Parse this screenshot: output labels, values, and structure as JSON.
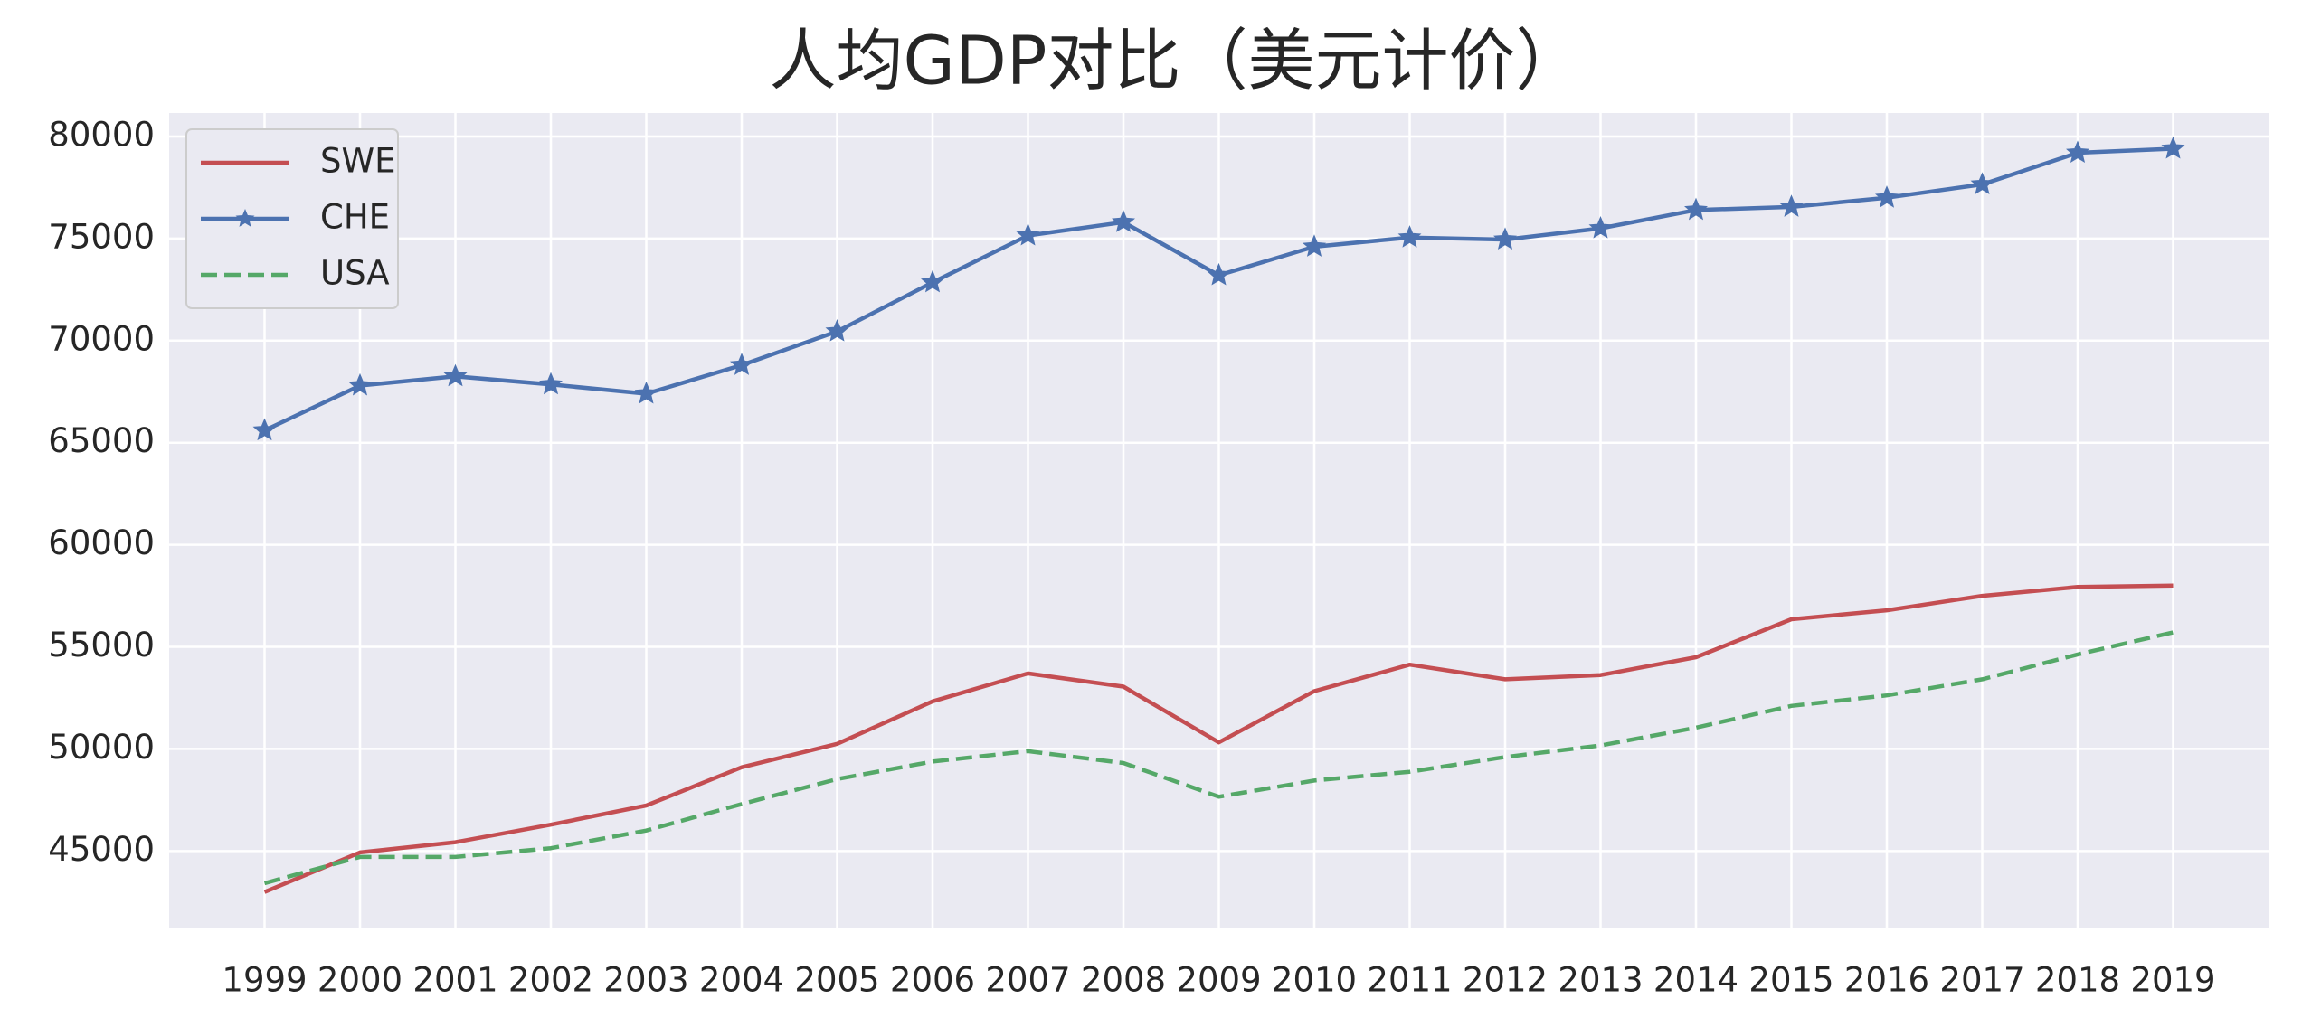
{
  "chart_data": {
    "type": "line",
    "title": "人均GDP对比（美元计价）",
    "categories": [
      "1999",
      "2000",
      "2001",
      "2002",
      "2003",
      "2004",
      "2005",
      "2006",
      "2007",
      "2008",
      "2009",
      "2010",
      "2011",
      "2012",
      "2013",
      "2014",
      "2015",
      "2016",
      "2017",
      "2018",
      "2019"
    ],
    "series": [
      {
        "name": "SWE",
        "color": "#c44e52",
        "linestyle": "solid",
        "marker": "none",
        "values": [
          42990,
          44930,
          45430,
          46290,
          47230,
          49100,
          50250,
          52330,
          53700,
          53050,
          50320,
          52830,
          54130,
          53410,
          53620,
          54490,
          56350,
          56790,
          57500,
          57930,
          58000
        ]
      },
      {
        "name": "CHE",
        "color": "#4c72b0",
        "linestyle": "solid",
        "marker": "star",
        "values": [
          65600,
          67800,
          68250,
          67850,
          67400,
          68800,
          70450,
          72850,
          75150,
          75800,
          73200,
          74600,
          75050,
          74950,
          75500,
          76400,
          76550,
          77000,
          77650,
          79200,
          79400
        ]
      },
      {
        "name": "USA",
        "color": "#55a868",
        "linestyle": "dashed",
        "marker": "none",
        "values": [
          43420,
          44710,
          44710,
          45140,
          46000,
          47300,
          48520,
          49380,
          49890,
          49310,
          47660,
          48450,
          48880,
          49600,
          50170,
          51040,
          52110,
          52620,
          53410,
          54630,
          55710
        ]
      }
    ],
    "ylim": [
      41250,
      81150
    ],
    "yticks": [
      45000,
      50000,
      55000,
      60000,
      65000,
      70000,
      75000,
      80000
    ],
    "grid": true,
    "legend": "upper left"
  }
}
